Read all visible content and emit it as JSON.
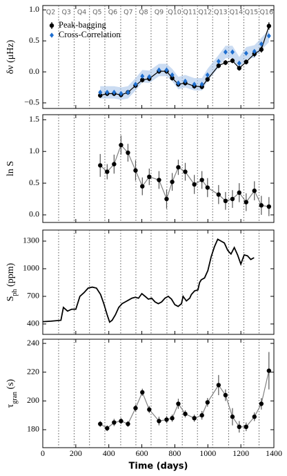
{
  "chart_data": [
    {
      "type": "scatter",
      "ylabel": "δν (μHz)",
      "xlim": [
        0,
        1400
      ],
      "ylim": [
        -0.59,
        1.07
      ],
      "yticks": [
        {
          "value": -0.5,
          "label": "−0.5"
        },
        {
          "value": 0,
          "label": "0.0"
        },
        0.5,
        {
          "value": 1,
          "label": "1.0"
        }
      ],
      "legend": "upper left",
      "quarter_labels": [
        "Q2",
        "Q3",
        "Q4",
        "Q5",
        "Q6",
        "Q7",
        "Q8",
        "Q9",
        "Q10",
        "Q11",
        "Q12",
        "Q13",
        "Q14",
        "Q15",
        "Q16"
      ],
      "quarter_boundaries": [
        96,
        190,
        283,
        376,
        472,
        564,
        656,
        752,
        845,
        937,
        1029,
        1126,
        1218,
        1310
      ],
      "x": [
        348,
        390,
        432,
        474,
        516,
        562,
        603,
        645,
        704,
        750,
        784,
        821,
        863,
        918,
        964,
        998,
        1065,
        1107,
        1149,
        1190,
        1232,
        1282,
        1324,
        1370
      ],
      "series": [
        {
          "name": "Peak-bagging",
          "color": "#000000",
          "marker": "circle",
          "line_color": "#000000",
          "values": [
            -0.38,
            -0.35,
            -0.35,
            -0.37,
            -0.33,
            -0.22,
            -0.13,
            -0.11,
            0.01,
            0.01,
            -0.1,
            -0.2,
            -0.18,
            -0.23,
            -0.24,
            -0.12,
            0.1,
            0.15,
            0.18,
            0.06,
            0.16,
            0.29,
            0.36,
            0.74
          ],
          "errors": [
            0.04,
            0.04,
            0.04,
            0.04,
            0.04,
            0.04,
            0.04,
            0.04,
            0.04,
            0.04,
            0.04,
            0.04,
            0.04,
            0.04,
            0.04,
            0.04,
            0.04,
            0.04,
            0.04,
            0.04,
            0.04,
            0.05,
            0.05,
            0.06
          ]
        },
        {
          "name": "Cross-Correlation",
          "color": "#1f6fd0",
          "marker": "diamond",
          "band_color": "#a9c4ea",
          "values": [
            -0.33,
            -0.33,
            -0.33,
            -0.35,
            -0.33,
            -0.2,
            -0.07,
            -0.08,
            0.03,
            0.03,
            -0.05,
            -0.18,
            -0.15,
            -0.2,
            -0.2,
            -0.05,
            0.17,
            0.32,
            0.32,
            0.14,
            0.3,
            0.33,
            0.45,
            0.58
          ],
          "errors": [
            0.1,
            0.1,
            0.1,
            0.1,
            0.1,
            0.1,
            0.1,
            0.1,
            0.1,
            0.1,
            0.1,
            0.1,
            0.1,
            0.1,
            0.1,
            0.1,
            0.1,
            0.1,
            0.1,
            0.1,
            0.1,
            0.1,
            0.1,
            0.1
          ]
        }
      ]
    },
    {
      "type": "scatter",
      "ylabel": "ln S",
      "xlim": [
        0,
        1400
      ],
      "ylim": [
        -0.12,
        1.58
      ],
      "yticks": [
        {
          "value": 0,
          "label": "0.0"
        },
        0.5,
        {
          "value": 1,
          "label": "1.0"
        },
        1.5
      ],
      "x": [
        348,
        390,
        432,
        474,
        516,
        562,
        603,
        645,
        704,
        750,
        784,
        821,
        863,
        918,
        964,
        998,
        1065,
        1107,
        1149,
        1190,
        1232,
        1282,
        1324,
        1370
      ],
      "series": [
        {
          "color": "#000000",
          "marker": "circle",
          "line_color": "#808080",
          "values": [
            0.78,
            0.68,
            0.8,
            1.1,
            0.98,
            0.7,
            0.45,
            0.6,
            0.55,
            0.25,
            0.52,
            0.75,
            0.68,
            0.48,
            0.55,
            0.43,
            0.32,
            0.22,
            0.25,
            0.35,
            0.2,
            0.38,
            0.15,
            0.13
          ],
          "errors": [
            0.18,
            0.12,
            0.15,
            0.15,
            0.14,
            0.16,
            0.14,
            0.13,
            0.14,
            0.15,
            0.14,
            0.12,
            0.14,
            0.15,
            0.14,
            0.15,
            0.15,
            0.14,
            0.14,
            0.15,
            0.14,
            0.15,
            0.15,
            0.15
          ]
        }
      ]
    },
    {
      "type": "line",
      "ylabel": {
        "main": "S",
        "sub": "ph",
        "unit": " (ppm)"
      },
      "xlim": [
        0,
        1400
      ],
      "ylim": [
        287,
        1420
      ],
      "yticks": [
        400,
        700,
        1000,
        1300
      ],
      "x": [
        0,
        50,
        110,
        125,
        150,
        175,
        200,
        225,
        250,
        275,
        300,
        325,
        350,
        370,
        390,
        405,
        420,
        440,
        460,
        480,
        500,
        520,
        540,
        560,
        580,
        600,
        620,
        640,
        660,
        680,
        700,
        720,
        740,
        760,
        780,
        800,
        820,
        840,
        850,
        870,
        890,
        900,
        920,
        940,
        950,
        960,
        980,
        1000,
        1020,
        1040,
        1060,
        1080,
        1100,
        1120,
        1140,
        1160,
        1180,
        1200,
        1220,
        1240,
        1260,
        1280
      ],
      "series": [
        {
          "color": "#000000",
          "values": [
            425,
            430,
            440,
            580,
            540,
            560,
            560,
            700,
            740,
            790,
            800,
            790,
            720,
            620,
            500,
            420,
            440,
            500,
            580,
            620,
            640,
            660,
            680,
            690,
            680,
            730,
            700,
            670,
            680,
            640,
            620,
            640,
            680,
            700,
            670,
            610,
            590,
            620,
            700,
            650,
            680,
            720,
            760,
            770,
            850,
            880,
            900,
            980,
            1130,
            1240,
            1320,
            1300,
            1280,
            1200,
            1160,
            1230,
            1150,
            1050,
            1150,
            1140,
            1100,
            1120
          ]
        }
      ]
    },
    {
      "type": "scatter",
      "ylabel": {
        "main": "τ",
        "sub": "gran",
        "unit": " (s)"
      },
      "xlabel": "Time (days)",
      "xlim": [
        0,
        1400
      ],
      "ylim": [
        167.5,
        242.9
      ],
      "yticks": [
        180,
        200,
        220,
        240
      ],
      "xticks": [
        0,
        200,
        400,
        600,
        800,
        1000,
        1200,
        1400
      ],
      "x": [
        348,
        390,
        432,
        474,
        516,
        562,
        603,
        645,
        704,
        750,
        784,
        821,
        863,
        918,
        964,
        998,
        1065,
        1107,
        1149,
        1190,
        1232,
        1282,
        1324,
        1370
      ],
      "series": [
        {
          "color": "#000000",
          "marker": "circle",
          "line_color": "#808080",
          "values": [
            184,
            181,
            185,
            186,
            184,
            195,
            206,
            194,
            186,
            187,
            188,
            198,
            191,
            188,
            190,
            199,
            211,
            204,
            189,
            182,
            182,
            189,
            198,
            221
          ],
          "errors": [
            2,
            2,
            2.5,
            2,
            2,
            2.5,
            2.5,
            2.5,
            3,
            2.5,
            2.5,
            3.5,
            2.5,
            2.5,
            3,
            3,
            7,
            4,
            6,
            4,
            3,
            3,
            4,
            13
          ]
        }
      ]
    }
  ]
}
